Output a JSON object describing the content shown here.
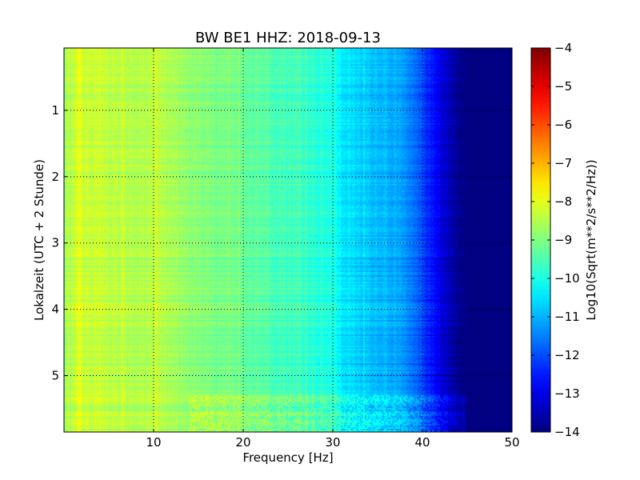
{
  "chart_data": {
    "type": "heatmap",
    "title": "BW BE1 HHZ: 2018-09-13",
    "xlabel": "Frequency [Hz]",
    "ylabel": "Lokalzeit (UTC + 2 Stunde)",
    "xlim": [
      0,
      50
    ],
    "ylim": [
      0.06,
      5.85
    ],
    "y_inverted": true,
    "x_ticks": [
      10,
      20,
      30,
      40,
      50
    ],
    "y_ticks": [
      1,
      2,
      3,
      4,
      5
    ],
    "x_tick_labels": [
      "10",
      "20",
      "30",
      "40",
      "50"
    ],
    "y_tick_labels": [
      "1",
      "2",
      "3",
      "4",
      "5"
    ],
    "grid": true,
    "colormap": "jet",
    "colorbar": {
      "label": "Log10(Sqrt(m**2/s**2/Hz))",
      "range": [
        -14,
        -4
      ],
      "ticks": [
        -4,
        -5,
        -6,
        -7,
        -8,
        -9,
        -10,
        -11,
        -12,
        -13,
        -14
      ],
      "tick_labels": [
        "−4",
        "−5",
        "−6",
        "−7",
        "−8",
        "−9",
        "−10",
        "−11",
        "−12",
        "−13",
        "−14"
      ]
    },
    "frequency_profile": {
      "frequency_hz": [
        0,
        1,
        2,
        4,
        6,
        8,
        10,
        12,
        14,
        16,
        18,
        20,
        22,
        24,
        26,
        28,
        30,
        31,
        32,
        34,
        36,
        38,
        40,
        41,
        42,
        43,
        44,
        45,
        50
      ],
      "log10_amplitude": [
        -8.8,
        -8.3,
        -8.2,
        -8.3,
        -8.4,
        -8.5,
        -8.4,
        -8.6,
        -8.8,
        -9.0,
        -9.1,
        -9.2,
        -9.3,
        -9.5,
        -9.6,
        -9.8,
        -10.0,
        -10.4,
        -10.6,
        -10.8,
        -10.9,
        -11.3,
        -12.0,
        -12.5,
        -13.0,
        -13.4,
        -13.8,
        -14.0,
        -14.0
      ]
    }
  }
}
